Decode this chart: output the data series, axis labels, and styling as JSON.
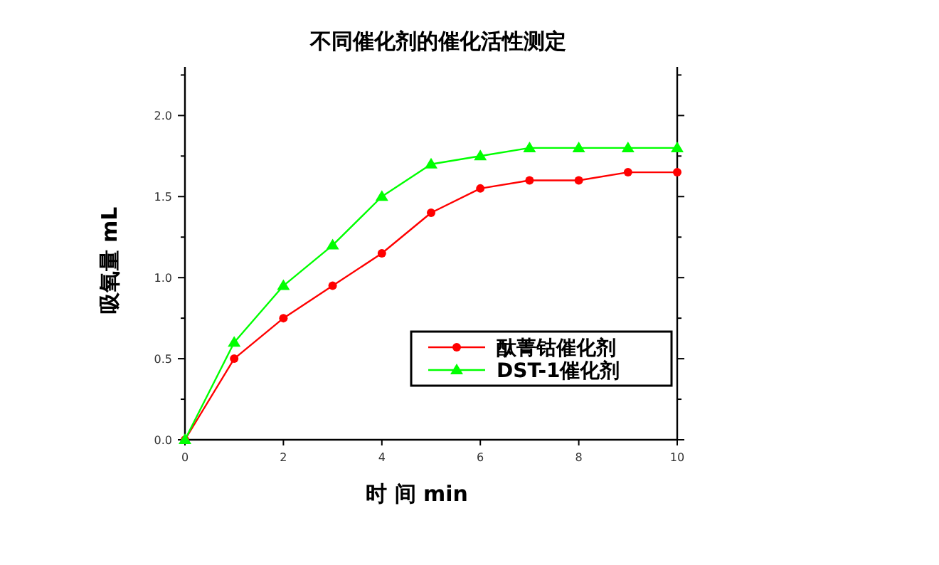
{
  "chart_data": {
    "type": "line",
    "title": "不同催化剂的催化活性测定",
    "xlabel": "时 间 min",
    "ylabel": "吸氧量 mL",
    "x": [
      0,
      1,
      2,
      3,
      4,
      5,
      6,
      7,
      8,
      9,
      10
    ],
    "series": [
      {
        "name": "酞菁钴催化剂",
        "color": "#ff0000",
        "marker": "circle",
        "values": [
          0,
          0.5,
          0.75,
          0.95,
          1.15,
          1.4,
          1.55,
          1.6,
          1.6,
          1.65,
          1.65
        ]
      },
      {
        "name": "DST-1催化剂",
        "color": "#00ff00",
        "marker": "triangle",
        "values": [
          0,
          0.6,
          0.95,
          1.2,
          1.5,
          1.7,
          1.75,
          1.8,
          1.8,
          1.8,
          1.8
        ]
      }
    ],
    "xlim": [
      0,
      10
    ],
    "xticks": [
      0,
      2,
      4,
      6,
      8,
      10
    ],
    "ylim": [
      0,
      2.3
    ],
    "yticks": [
      {
        "value": 0,
        "label": "0.0"
      },
      {
        "value": 0.25,
        "label": null
      },
      0.5,
      {
        "value": 0.75,
        "label": null
      },
      {
        "value": 1,
        "label": "1.0"
      },
      {
        "value": 1.25,
        "label": null
      },
      1.5,
      {
        "value": 1.75,
        "label": null
      },
      {
        "value": 2,
        "label": "2.0"
      },
      {
        "value": 2.25,
        "label": null
      }
    ],
    "legend": "bottom right",
    "grid": false,
    "line_style": "solid"
  }
}
